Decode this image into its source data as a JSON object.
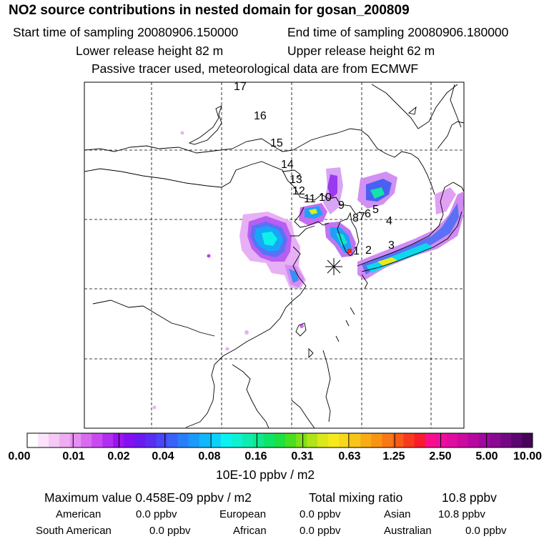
{
  "header": {
    "title": "NO2 source contributions in nested domain for gosan_200809",
    "start_label": "Start time of sampling 20080906.150000",
    "end_label": "End time of sampling 20080906.180000",
    "lower_label": "Lower release height   82 m",
    "upper_label": "Upper release height   62 m",
    "tracer_note": "Passive tracer used, meteorological data are from ECMWF"
  },
  "map": {
    "trajectory_labels": [
      "1",
      "2",
      "3",
      "4",
      "5",
      "6",
      "7",
      "8",
      "9",
      "10",
      "11",
      "12",
      "13",
      "14",
      "15",
      "16",
      "17"
    ],
    "receptor_symbol": "star-icon"
  },
  "colorbar": {
    "ticks": [
      "0.00",
      "0.01",
      "0.02",
      "0.04",
      "0.08",
      "0.16",
      "0.31",
      "0.63",
      "1.25",
      "2.50",
      "5.00",
      "10.00"
    ],
    "unit": "10E-10 ppbv / m2",
    "colors": [
      "#ffffff",
      "#fbe3fb",
      "#f5c8f5",
      "#eeacf2",
      "#e78ff0",
      "#d86cf0",
      "#c94bf0",
      "#b12df0",
      "#9a14f0",
      "#8210f0",
      "#6a1af0",
      "#5a2df2",
      "#4a46f5",
      "#3a62f7",
      "#2a7ef8",
      "#1a9af9",
      "#12b6fa",
      "#0dd1fa",
      "#0cf2f0",
      "#10f0d2",
      "#10ecb0",
      "#10e88c",
      "#10e466",
      "#1ee040",
      "#4ade20",
      "#7ee016",
      "#b0e418",
      "#dce81a",
      "#f6ea1c",
      "#f8d81a",
      "#f8c418",
      "#f8ac16",
      "#f89414",
      "#f87816",
      "#f85a18",
      "#f83a1c",
      "#f81c2c",
      "#f8108a",
      "#f00c9c",
      "#e00ca0",
      "#cc0aa0",
      "#b608a0",
      "#a008a0",
      "#8a0892",
      "#740882",
      "#5c0670",
      "#460458"
    ]
  },
  "summary": {
    "max_label": "Maximum value  0.458E-09 ppbv / m2",
    "total_label": "Total mixing ratio",
    "total_value": "10.8 ppbv",
    "regions": [
      {
        "name": "American",
        "value": "0.0 ppbv"
      },
      {
        "name": "European",
        "value": "0.0 ppbv"
      },
      {
        "name": "Asian",
        "value": "10.8 ppbv"
      },
      {
        "name": "South American",
        "value": "0.0 ppbv"
      },
      {
        "name": "African",
        "value": "0.0 ppbv"
      },
      {
        "name": "Australian",
        "value": "0.0 ppbv"
      }
    ]
  }
}
